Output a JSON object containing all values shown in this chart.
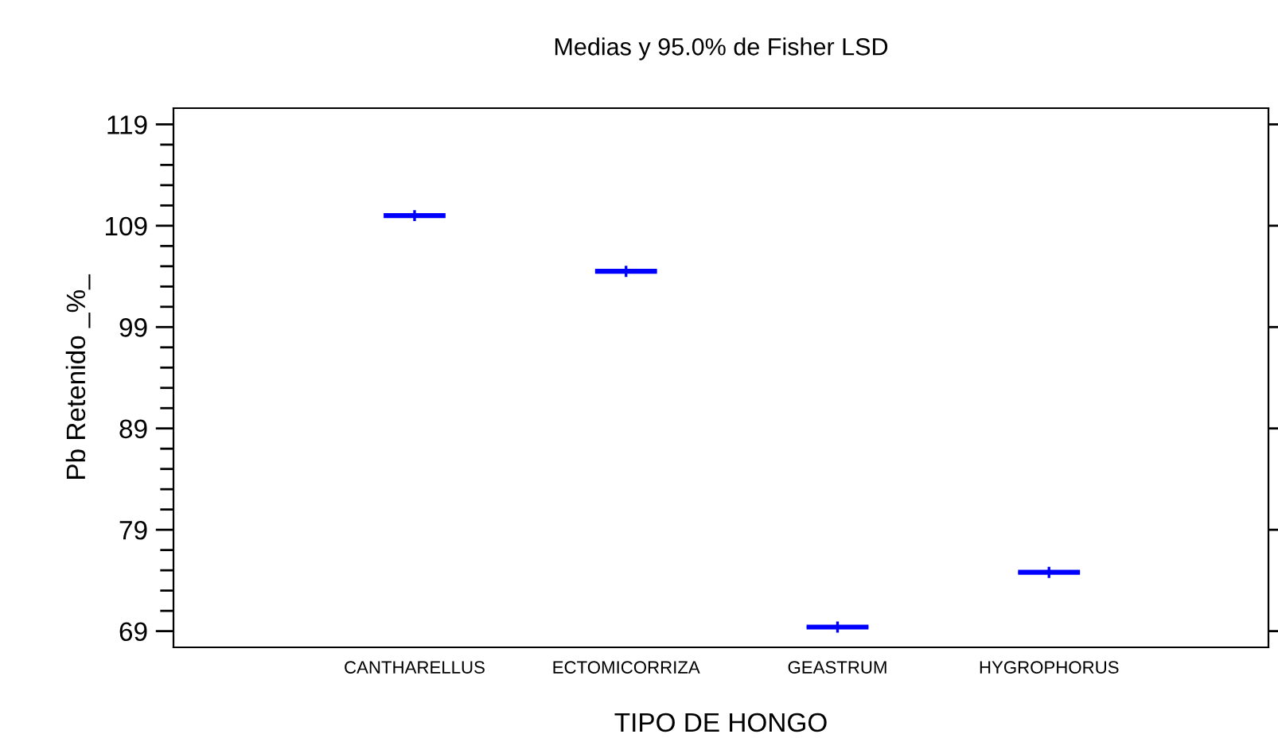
{
  "chart_data": {
    "type": "scatter",
    "title": "Medias y 95.0% de Fisher LSD",
    "xlabel": "TIPO DE HONGO",
    "ylabel": "Pb Retenido _%_",
    "categories": [
      "CANTHARELLUS",
      "ECTOMICORRIZA",
      "GEASTRUM",
      "HYGROPHORUS"
    ],
    "series": [
      {
        "color": "#0000ff",
        "values": [
          110.0,
          104.5,
          69.4,
          74.8
        ],
        "errors": [
          0.1,
          0.1,
          0.1,
          0.1
        ]
      }
    ],
    "marker": "cross",
    "ylim": [
      67.4,
      120.6
    ],
    "yticks": [
      69,
      {
        "value": 71,
        "label": null
      },
      {
        "value": 73,
        "label": null
      },
      {
        "value": 75,
        "label": null
      },
      {
        "value": 77,
        "label": null
      },
      79,
      {
        "value": 81,
        "label": null
      },
      {
        "value": 83,
        "label": null
      },
      {
        "value": 85,
        "label": null
      },
      {
        "value": 87,
        "label": null
      },
      89,
      {
        "value": 91,
        "label": null
      },
      {
        "value": 93,
        "label": null
      },
      {
        "value": 95,
        "label": null
      },
      {
        "value": 97,
        "label": null
      },
      99,
      {
        "value": 101,
        "label": null
      },
      {
        "value": 103,
        "label": null
      },
      {
        "value": 105,
        "label": null
      },
      {
        "value": 107,
        "label": null
      },
      109,
      {
        "value": 111,
        "label": null
      },
      {
        "value": 113,
        "label": null
      },
      {
        "value": 115,
        "label": null
      },
      {
        "value": 117,
        "label": null
      },
      119
    ],
    "grid": false,
    "legend": false
  }
}
